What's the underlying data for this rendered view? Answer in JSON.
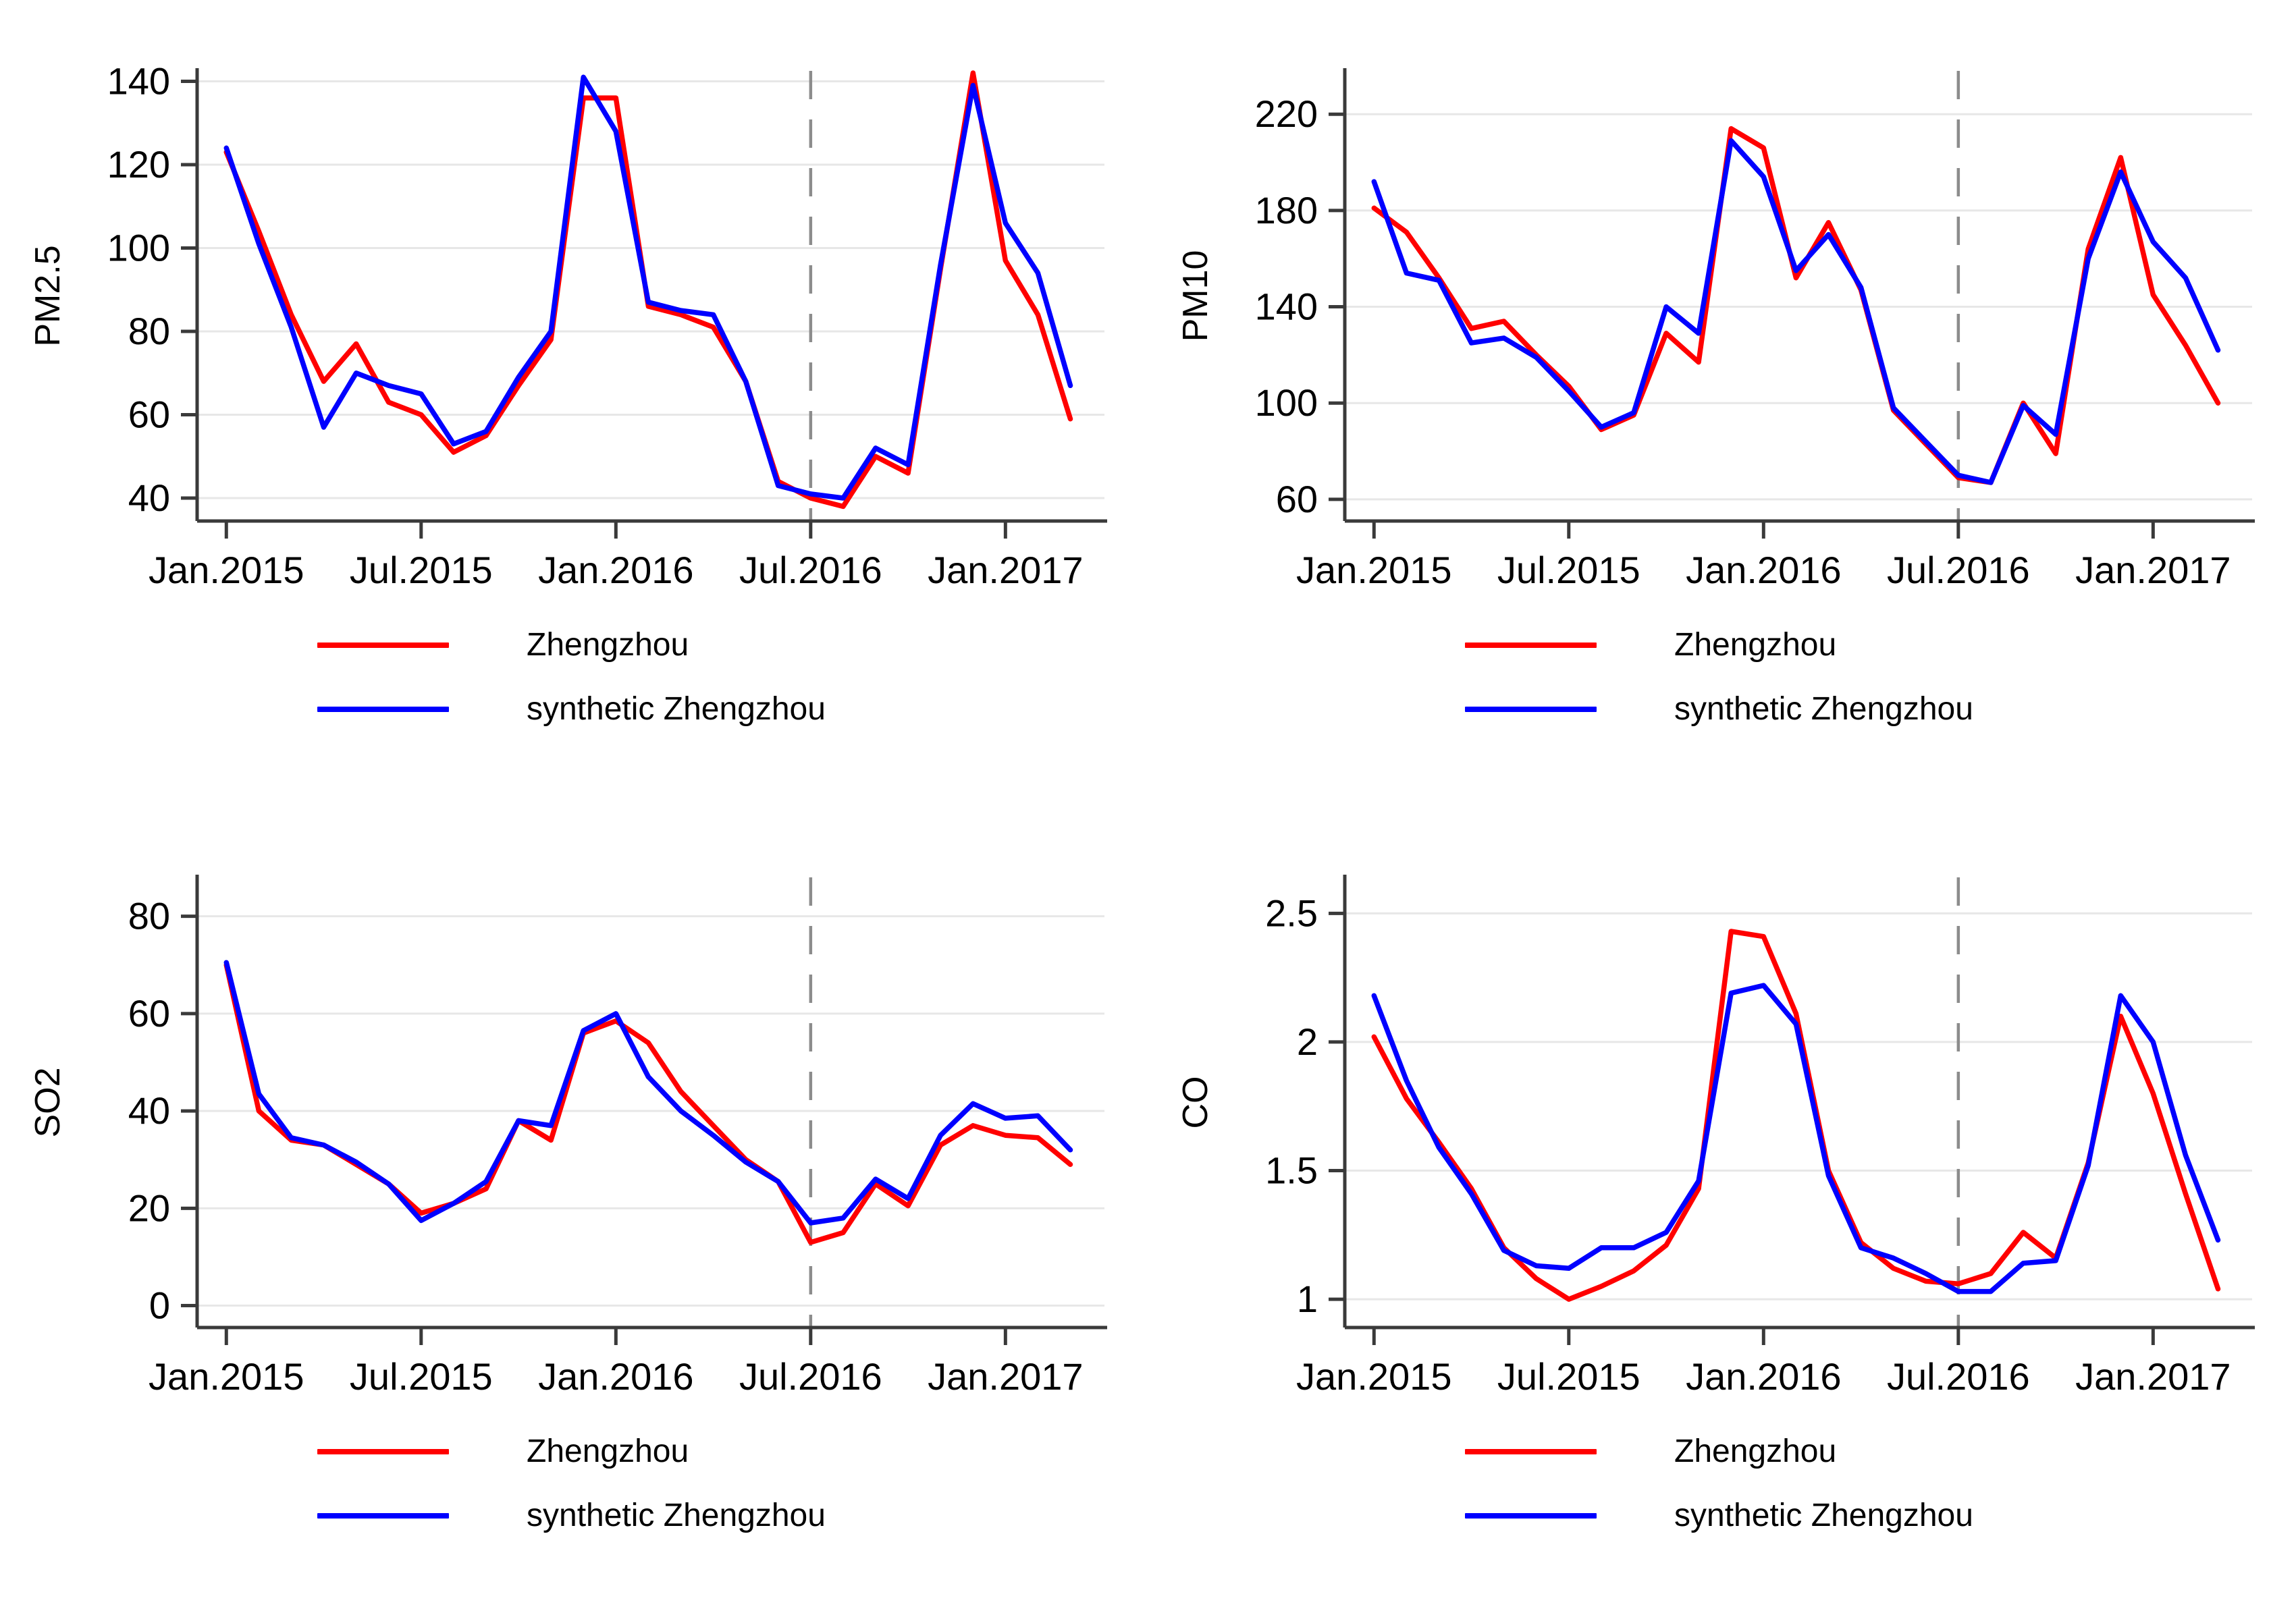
{
  "page": {
    "background": "#ffffff"
  },
  "colors": {
    "treated_line": "#ff0000",
    "synthetic_line": "#0000ff",
    "gridline": "#e7e7e7",
    "axis": "#3a3a3a",
    "tick_text": "#000000",
    "event_dashed_line": "#8c8c8c"
  },
  "legend": {
    "entries": [
      {
        "label": "Zhengzhou",
        "color": "#ff0000"
      },
      {
        "label": "synthetic Zhengzhou",
        "color": "#0000ff"
      }
    ]
  },
  "x_months": [
    "2015-01",
    "2015-02",
    "2015-03",
    "2015-04",
    "2015-05",
    "2015-06",
    "2015-07",
    "2015-08",
    "2015-09",
    "2015-10",
    "2015-11",
    "2015-12",
    "2016-01",
    "2016-02",
    "2016-03",
    "2016-04",
    "2016-05",
    "2016-06",
    "2016-07",
    "2016-08",
    "2016-09",
    "2016-10",
    "2016-11",
    "2016-12",
    "2017-01",
    "2017-02",
    "2017-03"
  ],
  "chart_data": [
    {
      "type": "line",
      "title": "",
      "xlabel": "",
      "ylabel": "PM2.5",
      "ylim": [
        34.5,
        142.5
      ],
      "yticks": [
        40,
        60,
        80,
        100,
        120,
        140
      ],
      "ytick_labels": [
        "40",
        "60",
        "80",
        "100",
        "120",
        "140"
      ],
      "xtick_positions": [
        0,
        6,
        12,
        18,
        24
      ],
      "xtick_labels": [
        "Jan.2015",
        "Jul.2015",
        "Jan.2016",
        "Jul.2016",
        "Jan.2017"
      ],
      "grid": true,
      "legend_position": "below",
      "event_line_x": 18,
      "series": [
        {
          "name": "Zhengzhou",
          "color": "#ff0000",
          "values": [
            123,
            104,
            84,
            68,
            77,
            63,
            60,
            51,
            55,
            67,
            78,
            136,
            136,
            86,
            84,
            81,
            68,
            44,
            40,
            38,
            50,
            46,
            95,
            142,
            97,
            84,
            59
          ]
        },
        {
          "name": "synthetic Zhengzhou",
          "color": "#0000ff",
          "values": [
            124,
            101,
            81,
            57,
            70,
            67,
            65,
            53,
            56,
            69,
            80,
            141,
            128,
            87,
            85,
            84,
            68,
            43,
            41,
            40,
            52,
            48,
            96,
            139,
            106,
            94,
            67
          ]
        }
      ]
    },
    {
      "type": "line",
      "title": "",
      "xlabel": "",
      "ylabel": "PM10",
      "ylim": [
        51,
        238
      ],
      "yticks": [
        60,
        100,
        140,
        180,
        220
      ],
      "ytick_labels": [
        "60",
        "100",
        "140",
        "180",
        "220"
      ],
      "xtick_positions": [
        0,
        6,
        12,
        18,
        24
      ],
      "xtick_labels": [
        "Jan.2015",
        "Jul.2015",
        "Jan.2016",
        "Jul.2016",
        "Jan.2017"
      ],
      "grid": true,
      "legend_position": "below",
      "event_line_x": 18,
      "series": [
        {
          "name": "Zhengzhou",
          "color": "#ff0000",
          "values": [
            181,
            171,
            152,
            131,
            134,
            120,
            107,
            89,
            95,
            129,
            117,
            214,
            206,
            152,
            175,
            147,
            97,
            83,
            69,
            67,
            100,
            79,
            164,
            202,
            145,
            124,
            100
          ]
        },
        {
          "name": "synthetic Zhengzhou",
          "color": "#0000ff",
          "values": [
            192,
            154,
            151,
            125,
            127,
            119,
            105,
            90,
            96,
            140,
            129,
            209,
            194,
            155,
            170,
            148,
            98,
            84,
            70,
            67,
            99,
            87,
            160,
            196,
            167,
            152,
            122
          ]
        }
      ]
    },
    {
      "type": "line",
      "title": "",
      "xlabel": "",
      "ylabel": "SO2",
      "ylim": [
        -4.5,
        88
      ],
      "yticks": [
        0,
        20,
        40,
        60,
        80
      ],
      "ytick_labels": [
        "0",
        "20",
        "40",
        "60",
        "80"
      ],
      "xtick_positions": [
        0,
        6,
        12,
        18,
        24
      ],
      "xtick_labels": [
        "Jan.2015",
        "Jul.2015",
        "Jan.2016",
        "Jul.2016",
        "Jan.2017"
      ],
      "grid": true,
      "legend_position": "below",
      "event_line_x": 18,
      "series": [
        {
          "name": "Zhengzhou",
          "color": "#ff0000",
          "values": [
            70,
            40,
            34,
            33,
            29,
            25,
            19,
            21,
            24,
            38,
            34,
            56,
            58.5,
            54,
            44,
            37,
            30,
            25.5,
            13,
            15,
            25,
            20.5,
            33,
            37,
            35,
            34.5,
            29
          ]
        },
        {
          "name": "synthetic Zhengzhou",
          "color": "#0000ff",
          "values": [
            70.5,
            43.5,
            34.5,
            33,
            29.5,
            25,
            17.5,
            21,
            25.5,
            38,
            37,
            56.5,
            60,
            47,
            40,
            35,
            29.5,
            25.5,
            17,
            18,
            26,
            22,
            35,
            41.5,
            38.5,
            39,
            32
          ]
        }
      ]
    },
    {
      "type": "line",
      "title": "",
      "xlabel": "",
      "ylabel": "CO",
      "ylim": [
        0.89,
        2.64
      ],
      "yticks": [
        1,
        1.5,
        2,
        2.5
      ],
      "ytick_labels": [
        "1",
        "1.5",
        "2",
        "2.5"
      ],
      "xtick_positions": [
        0,
        6,
        12,
        18,
        24
      ],
      "xtick_labels": [
        "Jan.2015",
        "Jul.2015",
        "Jan.2016",
        "Jul.2016",
        "Jan.2017"
      ],
      "grid": true,
      "legend_position": "below",
      "event_line_x": 18,
      "series": [
        {
          "name": "Zhengzhou",
          "color": "#ff0000",
          "values": [
            2.02,
            1.78,
            1.61,
            1.43,
            1.2,
            1.08,
            1.0,
            1.05,
            1.11,
            1.21,
            1.43,
            2.43,
            2.41,
            2.11,
            1.5,
            1.22,
            1.12,
            1.07,
            1.06,
            1.1,
            1.26,
            1.16,
            1.53,
            2.1,
            1.8,
            1.41,
            1.04
          ]
        },
        {
          "name": "synthetic Zhengzhou",
          "color": "#0000ff",
          "values": [
            2.18,
            1.85,
            1.59,
            1.41,
            1.19,
            1.13,
            1.12,
            1.2,
            1.2,
            1.26,
            1.46,
            2.19,
            2.22,
            2.07,
            1.48,
            1.2,
            1.16,
            1.1,
            1.03,
            1.03,
            1.14,
            1.15,
            1.52,
            2.18,
            2.0,
            1.56,
            1.23
          ]
        }
      ]
    }
  ]
}
